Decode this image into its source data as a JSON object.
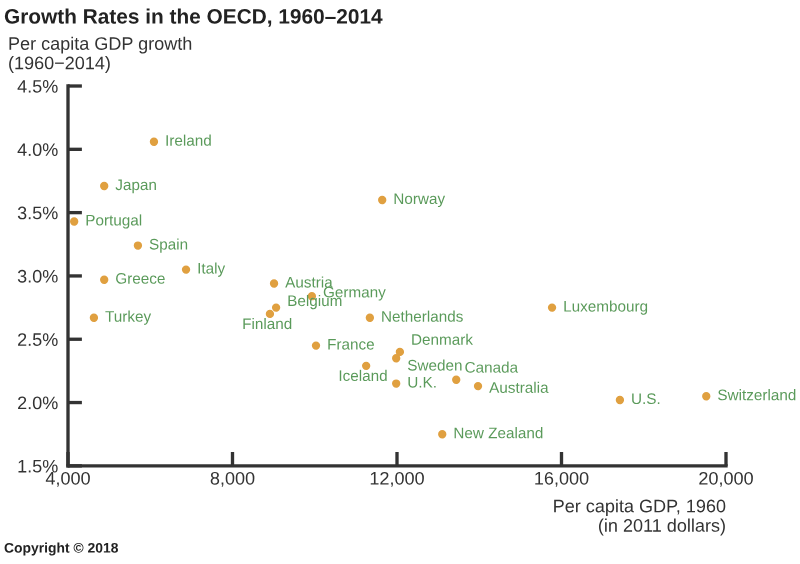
{
  "chart_data": {
    "type": "scatter",
    "title": "Growth Rates in the OECD, 1960–2014",
    "ylabel": "Per capita GDP growth\n(1960−2014)",
    "xlabel": "Per capita GDP, 1960\n(in 2011 dollars)",
    "x": [
      6090,
      4880,
      4150,
      5700,
      6870,
      4880,
      9010,
      9930,
      4630,
      9060,
      8910,
      10030,
      11250,
      11640,
      15770,
      11340,
      12070,
      11980,
      11980,
      13440,
      13970,
      17420,
      19520,
      13100
    ],
    "series": [
      {
        "color": "#e0a040",
        "values": [
          4.06,
          3.71,
          3.43,
          3.24,
          3.05,
          2.97,
          2.94,
          2.84,
          2.67,
          2.75,
          2.7,
          2.45,
          2.29,
          3.6,
          2.75,
          2.67,
          2.4,
          2.35,
          2.15,
          2.18,
          2.13,
          2.02,
          2.05,
          1.75
        ]
      }
    ],
    "xlim": [
      4000,
      20000
    ],
    "xticks": [
      {
        "value": 4000,
        "label": "4,000"
      },
      {
        "value": 8000,
        "label": "8,000"
      },
      {
        "value": 12000,
        "label": "12,000"
      },
      {
        "value": 16000,
        "label": "16,000"
      },
      {
        "value": 20000,
        "label": "20,000"
      }
    ],
    "ylim": [
      1.5,
      4.5
    ],
    "yticks": [
      {
        "value": 1.5,
        "label": "1.5%"
      },
      {
        "value": 2.0,
        "label": "2.0%"
      },
      {
        "value": 2.5,
        "label": "2.5%"
      },
      {
        "value": 3.0,
        "label": "3.0%"
      },
      {
        "value": 3.5,
        "label": "3.5%"
      },
      {
        "value": 4.0,
        "label": "4.0%"
      },
      {
        "value": 4.5,
        "label": "4.5%"
      }
    ],
    "grid": false,
    "marker": "circle",
    "annotations": [
      {
        "text": "Ireland",
        "x": 6090,
        "y": 4.06
      },
      {
        "text": "Japan",
        "x": 4880,
        "y": 3.71
      },
      {
        "text": "Portugal",
        "x": 4150,
        "y": 3.43
      },
      {
        "text": "Spain",
        "x": 5700,
        "y": 3.24
      },
      {
        "text": "Italy",
        "x": 6870,
        "y": 3.05
      },
      {
        "text": "Greece",
        "x": 4880,
        "y": 2.97
      },
      {
        "text": "Austria",
        "x": 9010,
        "y": 2.94
      },
      {
        "text": "Germany",
        "x": 9930,
        "y": 2.84
      },
      {
        "text": "Turkey",
        "x": 4630,
        "y": 2.67
      },
      {
        "text": "Belgium",
        "x": 9060,
        "y": 2.75
      },
      {
        "text": "Finland",
        "x": 8910,
        "y": 2.7
      },
      {
        "text": "France",
        "x": 10030,
        "y": 2.45
      },
      {
        "text": "Iceland",
        "x": 11250,
        "y": 2.29
      },
      {
        "text": "Norway",
        "x": 11640,
        "y": 3.6
      },
      {
        "text": "Luxembourg",
        "x": 15770,
        "y": 2.75
      },
      {
        "text": "Netherlands",
        "x": 11340,
        "y": 2.67
      },
      {
        "text": "Denmark",
        "x": 12070,
        "y": 2.4
      },
      {
        "text": "Sweden",
        "x": 11980,
        "y": 2.35
      },
      {
        "text": "U.K.",
        "x": 11980,
        "y": 2.15
      },
      {
        "text": "Canada",
        "x": 13440,
        "y": 2.18
      },
      {
        "text": "Australia",
        "x": 13970,
        "y": 2.13
      },
      {
        "text": "U.S.",
        "x": 17420,
        "y": 2.02
      },
      {
        "text": "Switzerland",
        "x": 19520,
        "y": 2.05
      },
      {
        "text": "New Zealand",
        "x": 13100,
        "y": 1.75
      },
      "Copyright © 2018"
    ]
  }
}
